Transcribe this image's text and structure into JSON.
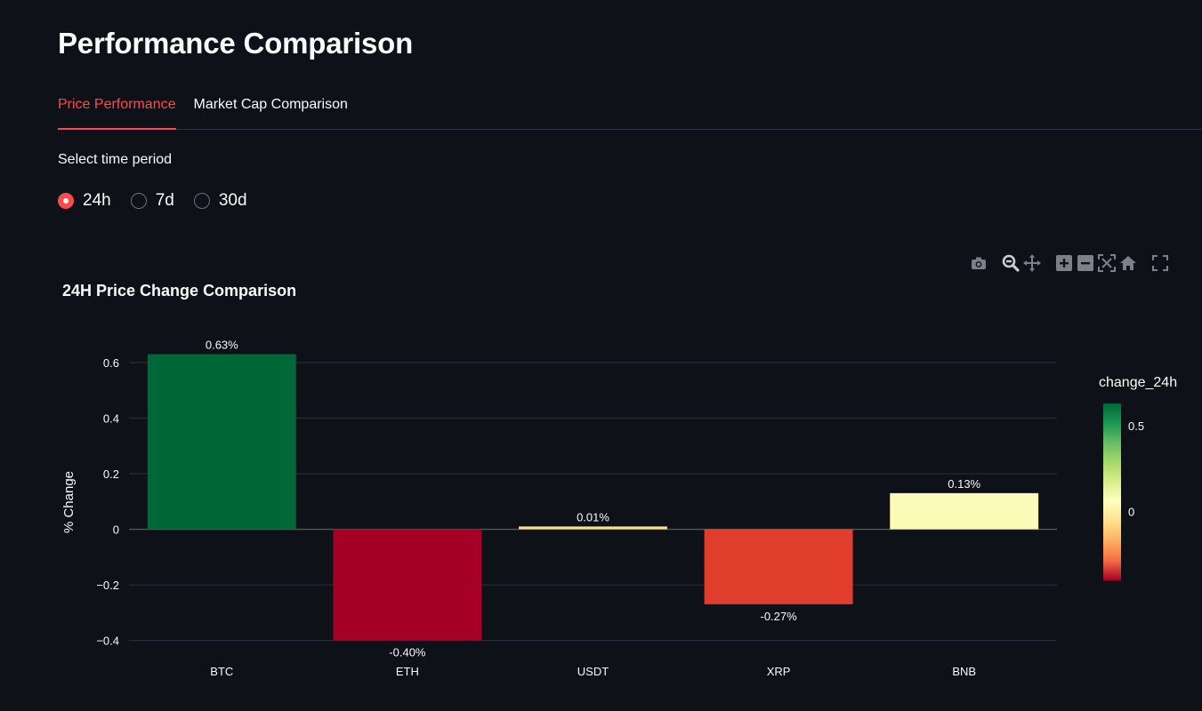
{
  "page": {
    "title": "Performance Comparison"
  },
  "tabs": [
    {
      "label": "Price Performance",
      "active": true
    },
    {
      "label": "Market Cap Comparison",
      "active": false
    }
  ],
  "time_period": {
    "caption": "Select time period",
    "options": [
      "24h",
      "7d",
      "30d"
    ],
    "selected": "24h"
  },
  "modebar": {
    "icons": [
      "camera-icon",
      "zoom-icon",
      "pan-icon",
      "zoom-in-icon",
      "zoom-out-icon",
      "autoscale-icon",
      "home-icon",
      "fullscreen-icon"
    ]
  },
  "colors": {
    "background": "#0e1117",
    "accent": "#ff4b4b",
    "grid": "#2f323b"
  },
  "chart_data": {
    "type": "bar",
    "title": "24H Price Change Comparison",
    "xlabel": "",
    "ylabel": "% Change",
    "categories": [
      "BTC",
      "ETH",
      "USDT",
      "XRP",
      "BNB"
    ],
    "values": [
      0.63,
      -0.4,
      0.01,
      -0.27,
      0.13
    ],
    "data_labels": [
      "0.63%",
      "-0.40%",
      "0.01%",
      "-0.27%",
      "0.13%"
    ],
    "bar_colors": [
      "#006837",
      "#a50026",
      "#fee08b",
      "#e03d2c",
      "#fafbb6"
    ],
    "ylim": [
      -0.43,
      0.67
    ],
    "y_ticks": [
      -0.4,
      -0.2,
      0,
      0.2,
      0.4,
      0.6
    ],
    "y_tick_labels": [
      "−0.4",
      "−0.2",
      "0",
      "0.2",
      "0.4",
      "0.6"
    ],
    "grid": true,
    "colorbar": {
      "title": "change_24h",
      "range": [
        -0.4,
        0.63
      ],
      "tick_values": [
        0,
        0.5
      ],
      "tick_labels": [
        "0",
        "0.5"
      ],
      "colorscale": [
        "#a50026",
        "#f46d43",
        "#fdae61",
        "#fee08b",
        "#ffffbf",
        "#d9ef8b",
        "#a6d96a",
        "#66bd63",
        "#1a9850",
        "#006837"
      ],
      "placement": "right"
    }
  }
}
